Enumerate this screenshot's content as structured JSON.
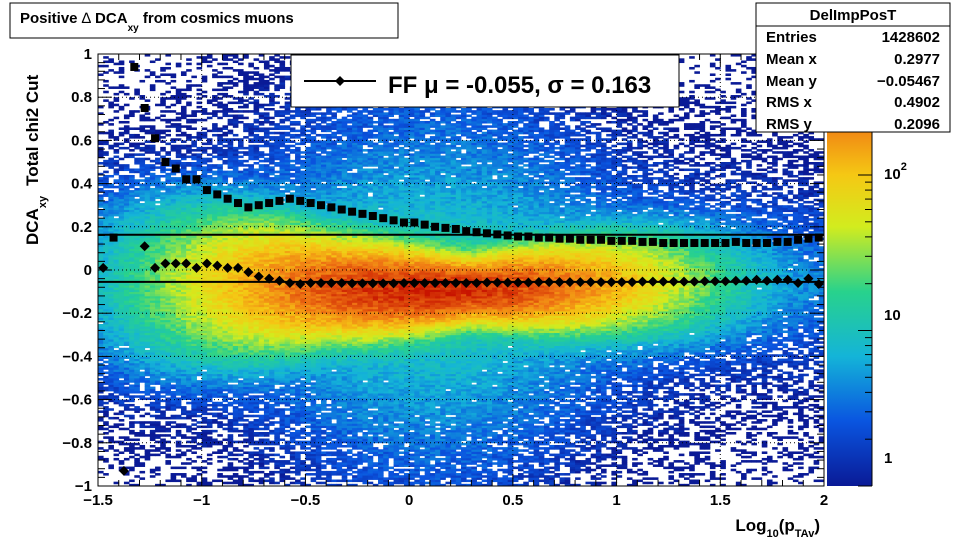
{
  "title": {
    "pre": "Positive ",
    "delta": "∆",
    "mid": " DCA",
    "sub": "xy",
    "post": " from cosmics muons"
  },
  "xaxis": {
    "main": "Log",
    "sub1": "10",
    "mid": "(p",
    "sub2": "TAv",
    "end": ")"
  },
  "yaxis": {
    "main": "DCA",
    "sub": "xy",
    "extra": "Total chi2 Cut"
  },
  "legend": {
    "label": "FF μ = -0.055, σ =   0.163"
  },
  "stats": {
    "title": "DelImpPosT",
    "rows": [
      {
        "label": "Entries",
        "value": "1428602"
      },
      {
        "label": "Mean x",
        "value": "0.2977"
      },
      {
        "label": "Mean y",
        "value": "−0.05467"
      },
      {
        "label": "RMS x",
        "value": "0.4902"
      },
      {
        "label": "RMS y",
        "value": "0.2096"
      }
    ]
  },
  "colorbar": {
    "labels": [
      {
        "base": "10",
        "exp": "2"
      },
      {
        "base": "10",
        "exp": ""
      },
      {
        "base": "1",
        "exp": ""
      }
    ]
  },
  "chart_data": {
    "type": "heatmap",
    "xlim": [
      -1.5,
      2
    ],
    "ylim": [
      -1,
      1
    ],
    "x_ticks": [
      -1.5,
      -1,
      -0.5,
      0,
      0.5,
      1,
      1.5,
      2
    ],
    "x_tick_labels": [
      "−1.5",
      "−1",
      "−0.5",
      "0",
      "0.5",
      "1",
      "1.5",
      "2"
    ],
    "y_ticks": [
      -1,
      -0.8,
      -0.6,
      -0.4,
      -0.2,
      0,
      0.2,
      0.4,
      0.6,
      0.8,
      1
    ],
    "y_tick_labels": [
      "−1",
      "−0.8",
      "−0.6",
      "−0.4",
      "−0.2",
      "0",
      "0.2",
      "0.4",
      "0.6",
      "0.8",
      "1"
    ],
    "z_scale": "log",
    "zlim": [
      1,
      600
    ],
    "colors": {
      "low": "#0a1a96",
      "high": "#c81400"
    },
    "hist_mean_y": -0.055,
    "hist_sigma": 0.163,
    "hlines": [
      -0.055,
      0.163
    ],
    "series": [
      {
        "marker": "diamond",
        "x": [
          -1.475,
          -1.425,
          -1.375,
          -1.325,
          -1.275,
          -1.225,
          -1.175,
          -1.125,
          -1.075,
          -1.025,
          -0.975,
          -0.925,
          -0.875,
          -0.825,
          -0.775,
          -0.725,
          -0.675,
          -0.625,
          -0.575,
          -0.525,
          -0.475,
          -0.425,
          -0.375,
          -0.325,
          -0.275,
          -0.225,
          -0.175,
          -0.125,
          -0.075,
          -0.025,
          0.025,
          0.075,
          0.125,
          0.175,
          0.225,
          0.275,
          0.325,
          0.375,
          0.425,
          0.475,
          0.525,
          0.575,
          0.625,
          0.675,
          0.725,
          0.775,
          0.825,
          0.875,
          0.925,
          0.975,
          1.025,
          1.075,
          1.125,
          1.175,
          1.225,
          1.275,
          1.325,
          1.375,
          1.425,
          1.475,
          1.525,
          1.575,
          1.625,
          1.675,
          1.725,
          1.775,
          1.825,
          1.875,
          1.925,
          1.975
        ],
        "y": [
          0.01,
          null,
          -0.93,
          null,
          0.11,
          0.01,
          0.03,
          0.03,
          0.03,
          0.01,
          0.03,
          0.02,
          0.01,
          0.01,
          -0.01,
          -0.03,
          -0.04,
          -0.05,
          -0.06,
          -0.065,
          -0.06,
          -0.06,
          -0.06,
          -0.06,
          -0.062,
          -0.062,
          -0.062,
          -0.062,
          -0.062,
          -0.06,
          -0.06,
          -0.06,
          -0.06,
          -0.06,
          -0.06,
          -0.06,
          -0.06,
          -0.058,
          -0.058,
          -0.058,
          -0.058,
          -0.058,
          -0.056,
          -0.056,
          -0.056,
          -0.056,
          -0.056,
          -0.056,
          -0.056,
          -0.056,
          -0.056,
          -0.056,
          -0.054,
          -0.054,
          -0.054,
          -0.054,
          -0.054,
          -0.054,
          -0.052,
          -0.052,
          -0.052,
          -0.05,
          -0.05,
          -0.045,
          -0.05,
          -0.045,
          -0.045,
          -0.06,
          -0.04,
          -0.065
        ]
      },
      {
        "marker": "square",
        "x": [
          -1.475,
          -1.425,
          -1.375,
          -1.325,
          -1.275,
          -1.225,
          -1.175,
          -1.125,
          -1.075,
          -1.025,
          -0.975,
          -0.925,
          -0.875,
          -0.825,
          -0.775,
          -0.725,
          -0.675,
          -0.625,
          -0.575,
          -0.525,
          -0.475,
          -0.425,
          -0.375,
          -0.325,
          -0.275,
          -0.225,
          -0.175,
          -0.125,
          -0.075,
          -0.025,
          0.025,
          0.075,
          0.125,
          0.175,
          0.225,
          0.275,
          0.325,
          0.375,
          0.425,
          0.475,
          0.525,
          0.575,
          0.625,
          0.675,
          0.725,
          0.775,
          0.825,
          0.875,
          0.925,
          0.975,
          1.025,
          1.075,
          1.125,
          1.175,
          1.225,
          1.275,
          1.325,
          1.375,
          1.425,
          1.475,
          1.525,
          1.575,
          1.625,
          1.675,
          1.725,
          1.775,
          1.825,
          1.875,
          1.925,
          1.975
        ],
        "y": [
          null,
          0.15,
          null,
          0.94,
          0.75,
          0.61,
          0.5,
          0.47,
          0.42,
          0.42,
          0.37,
          0.35,
          0.33,
          0.31,
          0.29,
          0.3,
          0.31,
          0.32,
          0.33,
          0.32,
          0.31,
          0.3,
          0.29,
          0.28,
          0.27,
          0.26,
          0.25,
          0.24,
          0.23,
          0.22,
          0.22,
          0.21,
          0.2,
          0.195,
          0.19,
          0.18,
          0.175,
          0.17,
          0.165,
          0.16,
          0.155,
          0.155,
          0.15,
          0.15,
          0.145,
          0.145,
          0.14,
          0.14,
          0.14,
          0.135,
          0.135,
          0.135,
          0.13,
          0.13,
          0.125,
          0.125,
          0.125,
          0.125,
          0.125,
          0.125,
          0.125,
          0.13,
          0.125,
          0.125,
          0.125,
          0.13,
          0.13,
          0.14,
          0.145,
          0.15
        ]
      }
    ]
  }
}
